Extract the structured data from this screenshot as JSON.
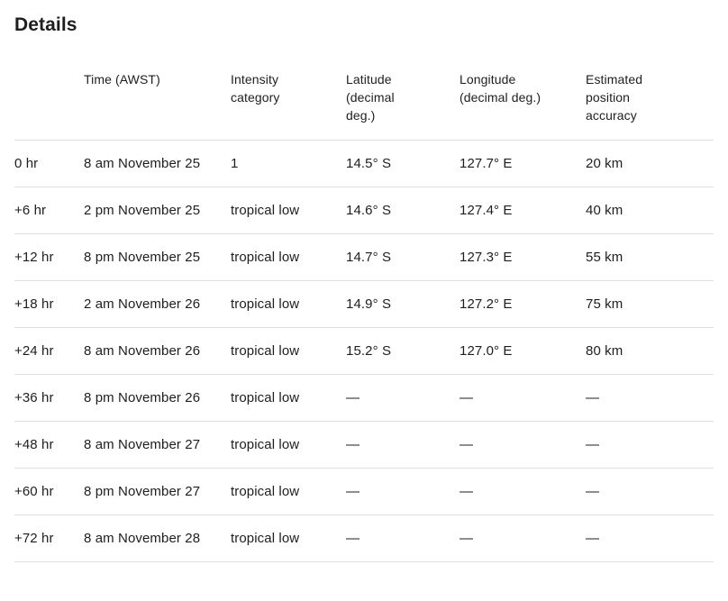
{
  "page_title": "Details",
  "table": {
    "columns": [
      {
        "key": "time-offset",
        "label": "",
        "display_lines": [
          ""
        ]
      },
      {
        "key": "time-awst",
        "label": "Time (AWST)",
        "display_lines": [
          "Time (AWST)"
        ]
      },
      {
        "key": "intensity-category",
        "label": "Intensity category",
        "display_lines": [
          "Intensity",
          "category"
        ]
      },
      {
        "key": "latitude",
        "label": "Latitude (decimal deg.)",
        "display_lines": [
          "Latitude",
          "(decimal",
          "deg.)"
        ]
      },
      {
        "key": "longitude",
        "label": "Longitude (decimal deg.)",
        "display_lines": [
          "Longitude",
          "(decimal deg.)"
        ]
      },
      {
        "key": "estimated-position-accuracy",
        "label": "Estimated position accuracy",
        "display_lines": [
          "Estimated",
          "position",
          "accuracy"
        ]
      }
    ],
    "rows": [
      [
        "0 hr",
        "8 am November 25",
        "1",
        "14.5° S",
        "127.7° E",
        "20 km"
      ],
      [
        "+6 hr",
        "2 pm November 25",
        "tropical low",
        "14.6° S",
        "127.4° E",
        "40 km"
      ],
      [
        "+12 hr",
        "8 pm November 25",
        "tropical low",
        "14.7° S",
        "127.3° E",
        "55 km"
      ],
      [
        "+18 hr",
        "2 am November 26",
        "tropical low",
        "14.9° S",
        "127.2° E",
        "75 km"
      ],
      [
        "+24 hr",
        "8 am November 26",
        "tropical low",
        "15.2° S",
        "127.0° E",
        "80 km"
      ],
      [
        "+36 hr",
        "8 pm November 26",
        "tropical low",
        "—",
        "—",
        "—"
      ],
      [
        "+48 hr",
        "8 am November 27",
        "tropical low",
        "—",
        "—",
        "—"
      ],
      [
        "+60 hr",
        "8 pm November 27",
        "tropical low",
        "—",
        "—",
        "—"
      ],
      [
        "+72 hr",
        "8 am November 28",
        "tropical low",
        "—",
        "—",
        "—"
      ]
    ]
  },
  "colors": {
    "text": "#1e1e1e",
    "divider": "#e0e0e0",
    "background": "#ffffff"
  }
}
